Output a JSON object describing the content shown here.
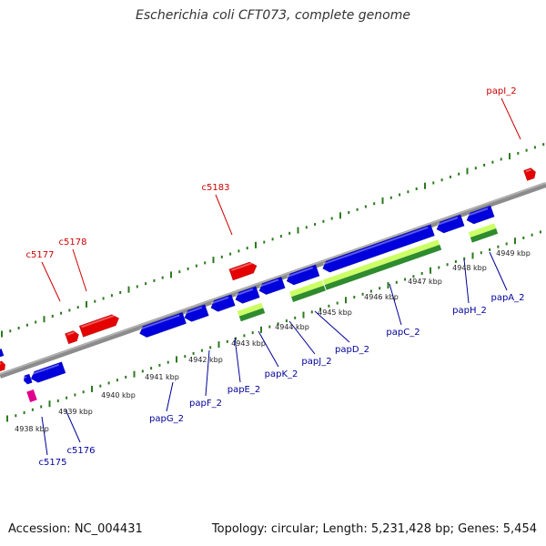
{
  "title": "Escherichia coli CFT073, complete genome",
  "footer": {
    "accession": "Accession: NC_004431",
    "stats": "Topology: circular; Length: 5,231,428 bp; Genes: 5,454"
  },
  "colors": {
    "background": "#ffffff",
    "backbone": "#8c8c8c",
    "tick": "#2b7a1e",
    "forward_gene": "#e50000",
    "reverse_gene": "#0000dd",
    "rna_gene": "#e0008c",
    "operon_light": "#ccff66",
    "operon_dark": "#2e8b2e",
    "forward_label": "#cc0000",
    "reverse_label": "#000099"
  },
  "axis": {
    "unit": "kbp",
    "ticks": [
      "4938 kbp",
      "4939 kbp",
      "4940 kbp",
      "4941 kbp",
      "4942 kbp",
      "4943 kbp",
      "4944 kbp",
      "4945 kbp",
      "4946 kbp",
      "4947 kbp",
      "4948 kbp",
      "4949 kbp"
    ]
  },
  "forward_labels": [
    "c5177",
    "c5178",
    "c5183",
    "papI_2"
  ],
  "reverse_labels": [
    "c5175",
    "c5176",
    "papG_2",
    "papF_2",
    "papE_2",
    "papK_2",
    "papJ_2",
    "papD_2",
    "papC_2",
    "papH_2",
    "papA_2"
  ]
}
